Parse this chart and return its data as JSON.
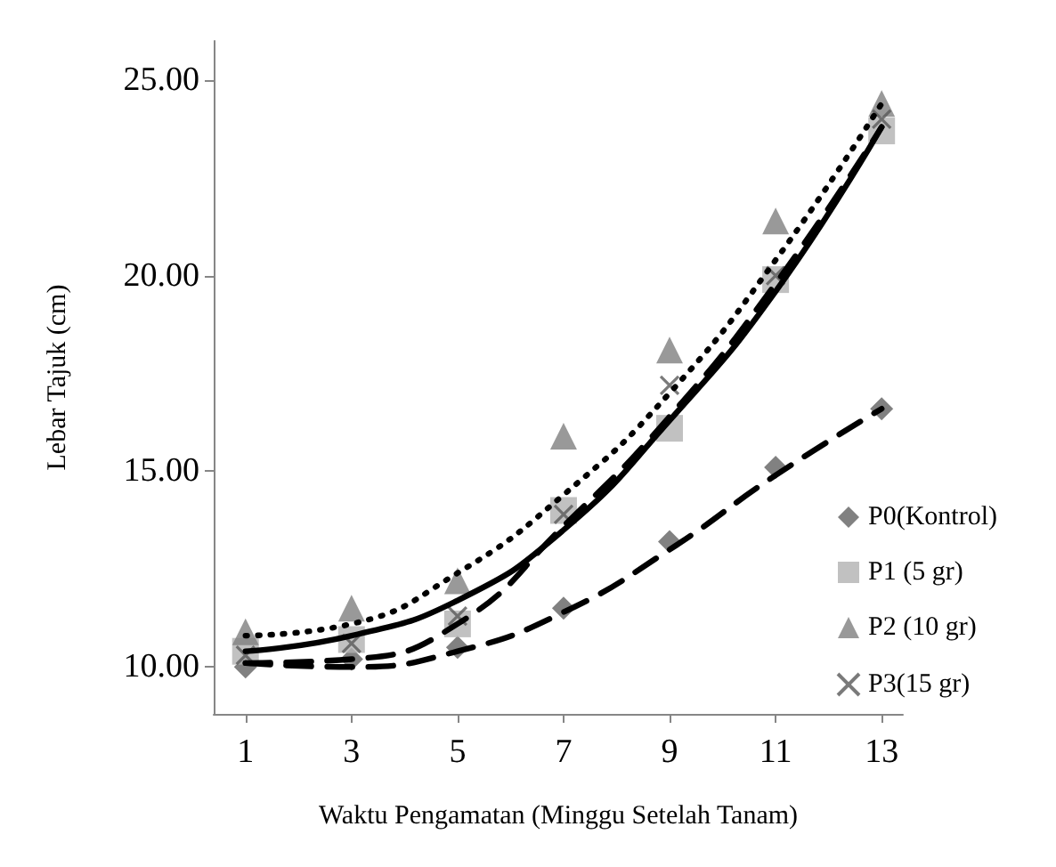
{
  "chart_data": {
    "type": "scatter",
    "xlabel": "Waktu Pengamatan (Minggu Setelah Tanam)",
    "ylabel": "Lebar Tajuk (cm)",
    "x": [
      1,
      3,
      5,
      7,
      9,
      11,
      13
    ],
    "xlim": [
      0.4,
      13.4
    ],
    "xticks": [
      1,
      3,
      5,
      7,
      9,
      11,
      13
    ],
    "ylim": [
      8.8,
      26
    ],
    "yticks": [
      {
        "value": 10,
        "label": "10.00"
      },
      {
        "value": 15,
        "label": "15.00"
      },
      {
        "value": 20,
        "label": "20.00"
      },
      {
        "value": 25,
        "label": "25.00"
      }
    ],
    "grid": false,
    "legend": "right",
    "series": [
      {
        "name": "P0(Kontrol)",
        "color": "#626262",
        "marker": "diamond",
        "values": [
          10.0,
          10.2,
          10.5,
          11.5,
          13.2,
          15.1,
          16.6
        ]
      },
      {
        "name": "P1 (5 gr)",
        "color": "#b2b2b2",
        "marker": "square",
        "values": [
          10.4,
          10.7,
          11.1,
          14.0,
          16.1,
          19.9,
          23.7
        ]
      },
      {
        "name": "P2 (10 gr)",
        "color": "#7f7f7f",
        "marker": "triangle",
        "values": [
          10.9,
          11.5,
          12.2,
          15.9,
          18.1,
          21.4,
          24.4
        ]
      },
      {
        "name": "P3(15 gr)",
        "color": "#595959",
        "marker": "cross",
        "values": [
          10.3,
          10.6,
          11.3,
          13.9,
          17.2,
          20.0,
          24.0
        ]
      },
      {
        "type": "line",
        "color": "#000000",
        "line_style": "dashed",
        "marker": "none",
        "values": [
          10.1,
          10.0,
          10.4,
          11.4,
          13.0,
          14.9,
          16.6
        ]
      },
      {
        "type": "line",
        "color": "#000000",
        "line_style": "dashed",
        "marker": "none",
        "values": [
          10.1,
          10.2,
          11.1,
          13.6,
          16.4,
          19.8,
          23.8
        ]
      },
      {
        "type": "line",
        "color": "#000000",
        "line_style": "dotted",
        "marker": "none",
        "values": [
          10.8,
          11.1,
          12.4,
          14.4,
          17.0,
          20.4,
          24.4
        ]
      },
      {
        "type": "line",
        "color": "#000000",
        "line_style": "solid",
        "marker": "none",
        "values": [
          10.4,
          10.8,
          11.7,
          13.5,
          16.3,
          19.6,
          23.8
        ]
      }
    ]
  }
}
